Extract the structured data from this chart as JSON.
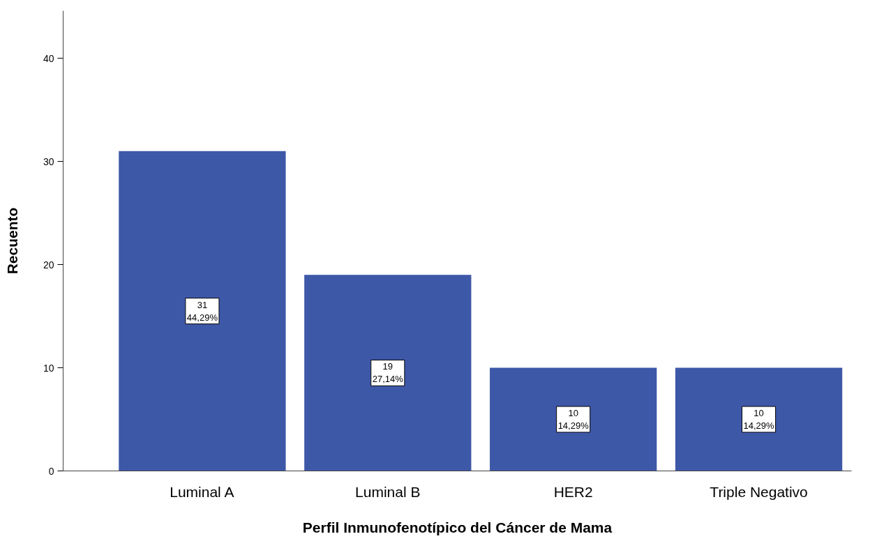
{
  "chart_data": {
    "type": "bar",
    "xlabel": "Perfil Inmunofenotípico del Cáncer de Mama",
    "ylabel": "Recuento",
    "categories": [
      "Luminal A",
      "Luminal B",
      "HER2",
      "Triple Negativo"
    ],
    "values": [
      31,
      19,
      10,
      10
    ],
    "value_labels": [
      "31\n44,29%",
      "19\n27,14%",
      "10\n14,29%",
      "10\n14,29%"
    ],
    "color": "#3e58a8",
    "ylim": [
      0,
      44.6
    ],
    "yticks": [
      0,
      10,
      20,
      30,
      40
    ],
    "grid": false
  }
}
